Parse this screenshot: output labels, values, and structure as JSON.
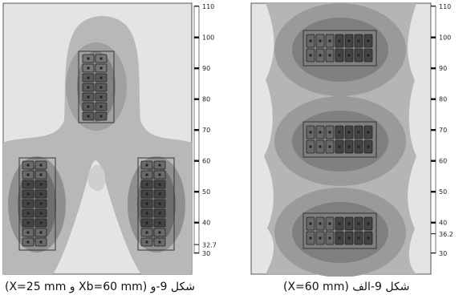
{
  "left_figure": {
    "caption": "شکل 9-و (Xb=60 mm و X=25 mm)",
    "scale_labels": [
      "110",
      "100",
      "90",
      "80",
      "70",
      "60",
      "50",
      "40",
      "32.7",
      "30"
    ],
    "scale_values": [
      110,
      100,
      90,
      80,
      70,
      60,
      50,
      40,
      32.7,
      30
    ]
  },
  "right_figure": {
    "caption": "شکل 9-الف (X=60 mm)",
    "scale_labels": [
      "110",
      "100",
      "90",
      "80",
      "70",
      "60",
      "50",
      "40",
      "36.2",
      "30"
    ],
    "scale_values": [
      110,
      100,
      90,
      80,
      70,
      60,
      50,
      40,
      36.2,
      30
    ]
  },
  "colors": {
    "bg_light": "#e6e6e6",
    "level1": "#bdbdbd",
    "level2": "#9c9c9c",
    "level3": "#7d7d7d",
    "level4": "#5e5e5e",
    "level5": "#3c3c3c"
  }
}
